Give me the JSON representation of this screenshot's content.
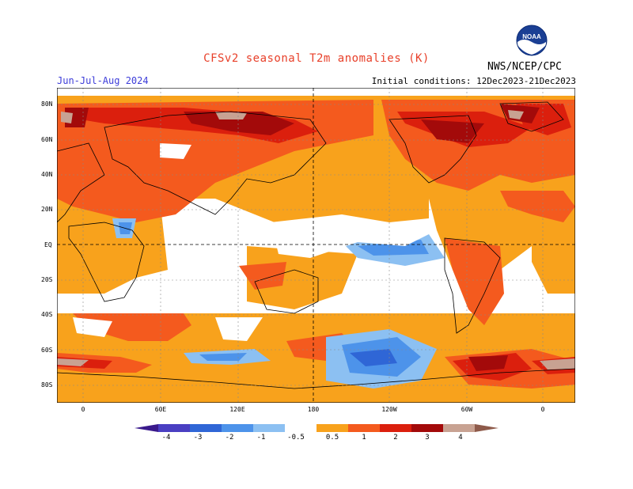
{
  "header": {
    "title": "CFSv2 seasonal T2m anomalies (K)",
    "period": "Jun-Jul-Aug 2024",
    "initial_conditions": "Initial conditions: 12Dec2023-21Dec2023",
    "agency": "NWS/NCEP/CPC",
    "logo_text": "NOAA",
    "logo_icon": "noaa-logo-icon"
  },
  "map": {
    "lat_labels": [
      "80N",
      "60N",
      "40N",
      "20N",
      "EQ",
      "20S",
      "40S",
      "60S",
      "80S"
    ],
    "lon_labels": [
      "0",
      "60E",
      "120E",
      "180",
      "120W",
      "60W",
      "0"
    ]
  },
  "colorbar": {
    "labels": [
      "-4",
      "-3",
      "-2",
      "-1",
      "-0.5",
      "0.5",
      "1",
      "2",
      "3",
      "4"
    ],
    "colors": {
      "below_-4": "#3a1a8c",
      "-4_-3": "#4a3fc2",
      "-3_-2": "#2f66d6",
      "-2_-1": "#4d93ea",
      "-1_-0.5": "#8cc0f2",
      "neutral": "#ffffff",
      "0.5_1": "#f8a21c",
      "1_2": "#f45a1e",
      "2_3": "#db1f0d",
      "3_4": "#a30a0a",
      "4_plus": "#c8a292",
      "above_max": "#8e5a4a"
    }
  }
}
